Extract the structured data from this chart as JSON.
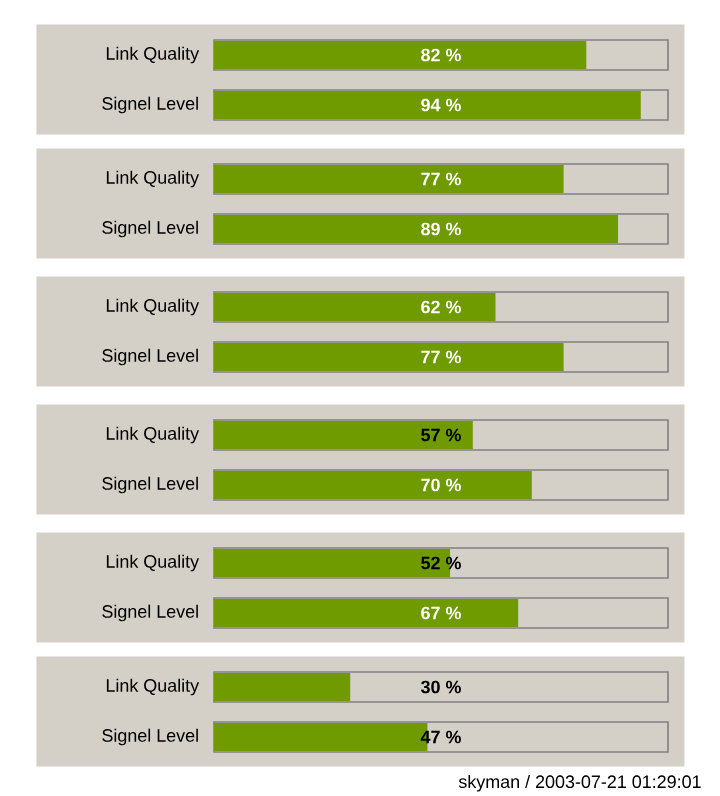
{
  "chart_data": [
    {
      "type": "bar",
      "orientation": "horizontal",
      "categories": [
        "Link Quality",
        "Signel Level"
      ],
      "values": [
        82,
        94
      ],
      "value_labels": [
        "82 %",
        "94 %"
      ],
      "color": "#6f9a00",
      "xlim": [
        0,
        100
      ],
      "tick_labels": "y"
    },
    {
      "type": "bar",
      "orientation": "horizontal",
      "categories": [
        "Link Quality",
        "Signel Level"
      ],
      "values": [
        77,
        89
      ],
      "value_labels": [
        "77 %",
        "89 %"
      ],
      "color": "#6f9a00",
      "xlim": [
        0,
        100
      ],
      "tick_labels": "y"
    },
    {
      "type": "bar",
      "orientation": "horizontal",
      "categories": [
        "Link Quality",
        "Signel Level"
      ],
      "values": [
        62,
        77
      ],
      "value_labels": [
        "62 %",
        "77 %"
      ],
      "color": "#6f9a00",
      "xlim": [
        0,
        100
      ],
      "tick_labels": "y"
    },
    {
      "type": "bar",
      "orientation": "horizontal",
      "categories": [
        "Link Quality",
        "Signel Level"
      ],
      "values": [
        57,
        70
      ],
      "value_labels": [
        "57 %",
        "70 %"
      ],
      "color": "#6f9a00",
      "xlim": [
        0,
        100
      ],
      "tick_labels": "y"
    },
    {
      "type": "bar",
      "orientation": "horizontal",
      "categories": [
        "Link Quality",
        "Signel Level"
      ],
      "values": [
        52,
        67
      ],
      "value_labels": [
        "52 %",
        "67 %"
      ],
      "color": "#6f9a00",
      "xlim": [
        0,
        100
      ],
      "tick_labels": "y"
    },
    {
      "type": "bar",
      "orientation": "horizontal",
      "categories": [
        "Link Quality",
        "Signel Level"
      ],
      "values": [
        30,
        47
      ],
      "value_labels": [
        "30 %",
        "47 %"
      ],
      "color": "#6f9a00",
      "xlim": [
        0,
        100
      ],
      "tick_labels": "y",
      "annotations": [
        "skyman / 2003-07-21 01:29:01"
      ]
    }
  ]
}
